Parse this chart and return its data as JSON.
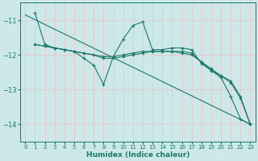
{
  "bg_color": "#cce8e8",
  "grid_color": "#e8c8c8",
  "line_color": "#1a7a6a",
  "xlabel": "Humidex (Indice chaleur)",
  "ylim": [
    -14.5,
    -10.5
  ],
  "xlim": [
    -0.5,
    23.5
  ],
  "yticks": [
    -14,
    -13,
    -12,
    -11
  ],
  "xticks": [
    0,
    1,
    2,
    3,
    4,
    5,
    6,
    7,
    8,
    9,
    10,
    11,
    12,
    13,
    14,
    15,
    16,
    17,
    18,
    19,
    20,
    21,
    22,
    23
  ],
  "line_zigzag": {
    "x": [
      1,
      2,
      3,
      4,
      5,
      6,
      7,
      8,
      9,
      10,
      11,
      12,
      13,
      14,
      15,
      16,
      17,
      18,
      19,
      20,
      21,
      22,
      23
    ],
    "y": [
      -10.8,
      -11.7,
      -11.8,
      -11.85,
      -11.9,
      -12.1,
      -12.3,
      -12.85,
      -12.05,
      -11.55,
      -11.15,
      -11.05,
      -11.85,
      -11.85,
      -11.8,
      -11.8,
      -11.85,
      -12.25,
      -12.45,
      -12.65,
      -13.2,
      -13.85,
      -14.0
    ]
  },
  "line_smooth1": {
    "x": [
      1,
      2,
      3,
      4,
      5,
      6,
      7,
      8,
      9,
      10,
      11,
      12,
      13,
      14,
      15,
      16,
      17,
      18,
      19,
      20,
      21,
      22,
      23
    ],
    "y": [
      -11.7,
      -11.75,
      -11.8,
      -11.85,
      -11.9,
      -11.95,
      -12.0,
      -12.05,
      -12.05,
      -12.0,
      -11.95,
      -11.9,
      -11.9,
      -11.9,
      -11.9,
      -11.9,
      -11.95,
      -12.2,
      -12.4,
      -12.6,
      -12.75,
      -13.2,
      -14.0
    ]
  },
  "line_smooth2": {
    "x": [
      1,
      2,
      3,
      4,
      5,
      6,
      7,
      8,
      9,
      10,
      11,
      12,
      13,
      14,
      15,
      16,
      17,
      18,
      19,
      20,
      21,
      22,
      23
    ],
    "y": [
      -11.7,
      -11.75,
      -11.8,
      -11.85,
      -11.9,
      -11.95,
      -12.0,
      -12.1,
      -12.1,
      -12.05,
      -12.0,
      -11.95,
      -11.9,
      -11.9,
      -11.9,
      -11.95,
      -12.0,
      -12.2,
      -12.45,
      -12.6,
      -12.8,
      -13.25,
      -14.0
    ]
  },
  "line_diagonal": {
    "x": [
      0,
      23
    ],
    "y": [
      -10.85,
      -14.0
    ]
  }
}
